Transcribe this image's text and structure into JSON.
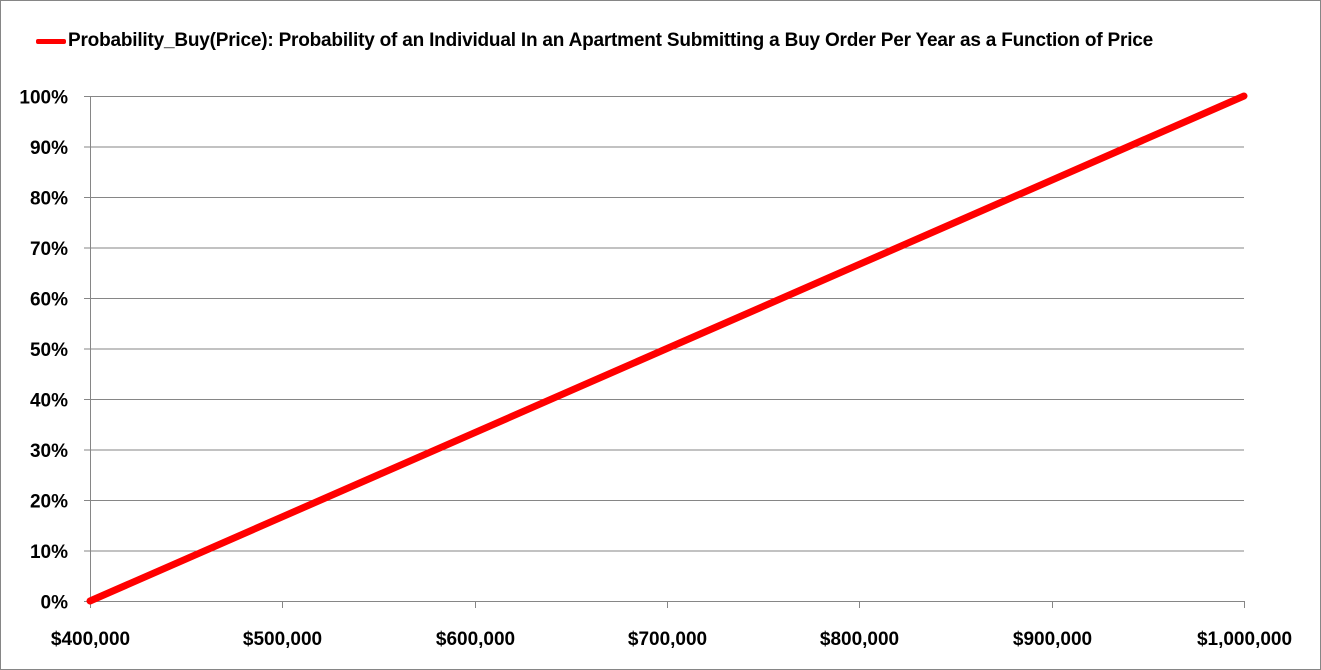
{
  "chart_data": {
    "type": "line",
    "title": "",
    "legend": {
      "position": "top",
      "entries": [
        "Probability_Buy(Price): Probability of an Individual In an Apartment Submitting a Buy Order Per Year as a Function of Price"
      ]
    },
    "xlabel": "",
    "ylabel": "",
    "xlim": [
      400000,
      1000000
    ],
    "ylim": [
      0,
      1
    ],
    "grid": {
      "horizontal": true,
      "vertical": false
    },
    "x_tick_labels": [
      "$400,000",
      "$500,000",
      "$600,000",
      "$700,000",
      "$800,000",
      "$900,000",
      "$1,000,000"
    ],
    "x_ticks": [
      400000,
      500000,
      600000,
      700000,
      800000,
      900000,
      1000000
    ],
    "y_tick_labels": [
      "0%",
      "10%",
      "20%",
      "30%",
      "40%",
      "50%",
      "60%",
      "70%",
      "80%",
      "90%",
      "100%"
    ],
    "y_ticks": [
      0,
      0.1,
      0.2,
      0.3,
      0.4,
      0.5,
      0.6,
      0.7,
      0.8,
      0.9,
      1.0
    ],
    "series": [
      {
        "name": "Probability_Buy(Price): Probability of an Individual In an Apartment Submitting a Buy Order Per Year as a Function of Price",
        "color": "#ff0000",
        "x": [
          400000,
          450000,
          500000,
          550000,
          600000,
          650000,
          700000,
          750000,
          800000,
          850000,
          900000,
          950000,
          1000000
        ],
        "y": [
          0,
          0.0833,
          0.1667,
          0.25,
          0.3333,
          0.4167,
          0.5,
          0.5833,
          0.6667,
          0.75,
          0.8333,
          0.9167,
          1.0
        ]
      }
    ]
  }
}
